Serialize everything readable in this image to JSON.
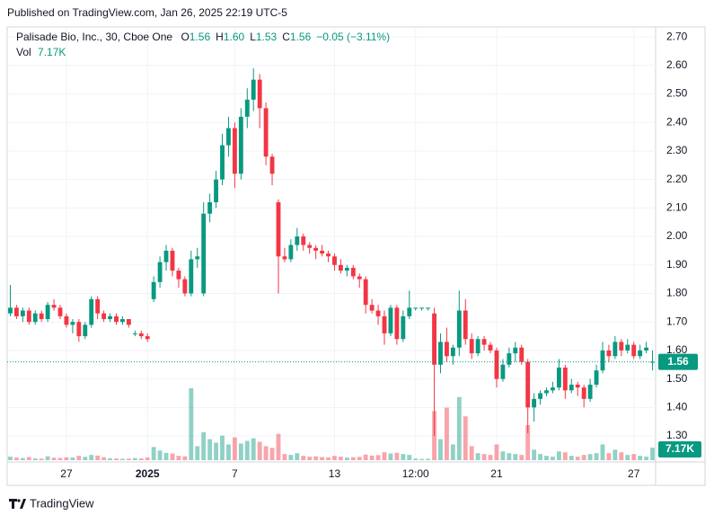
{
  "published": "Published on TradingView.com, Jan 26, 2025 22:19 UTC-5",
  "brand": "TradingView",
  "chart_data": {
    "type": "candlestick",
    "legend": {
      "symbol": "Palisade Bio, Inc., 30, Cboe One",
      "ohlc": [
        {
          "key": "O",
          "value": "1.56"
        },
        {
          "key": "H",
          "value": "1.60"
        },
        {
          "key": "L",
          "value": "1.53"
        },
        {
          "key": "C",
          "value": "1.56"
        }
      ],
      "change": "−0.05 (−3.11%)",
      "vol_key": "Vol",
      "vol_value": "7.17K"
    },
    "up_color": "#089981",
    "down_color": "#f23645",
    "grid": true,
    "ylim": [
      1.215,
      2.735
    ],
    "yticks": [
      {
        "value": 1.3,
        "label": "1.30"
      },
      {
        "value": 1.4,
        "label": "1.40"
      },
      {
        "value": 1.5,
        "label": "1.50"
      },
      {
        "value": 1.6,
        "label": "1.60"
      },
      {
        "value": 1.7,
        "label": "1.70"
      },
      {
        "value": 1.8,
        "label": "1.80"
      },
      {
        "value": 1.9,
        "label": "1.90"
      },
      {
        "value": 2.0,
        "label": "2.00"
      },
      {
        "value": 2.1,
        "label": "2.10"
      },
      {
        "value": 2.2,
        "label": "2.20"
      },
      {
        "value": 2.3,
        "label": "2.30"
      },
      {
        "value": 2.4,
        "label": "2.40"
      },
      {
        "value": 2.5,
        "label": "2.50"
      },
      {
        "value": 2.6,
        "label": "2.60"
      },
      {
        "value": 2.7,
        "label": "2.70"
      }
    ],
    "last_price": 1.56,
    "categories": [
      null,
      null,
      null,
      null,
      null,
      null,
      null,
      null,
      null,
      "27",
      null,
      null,
      null,
      null,
      null,
      null,
      null,
      null,
      null,
      null,
      null,
      null,
      "2025",
      null,
      null,
      null,
      null,
      null,
      null,
      null,
      null,
      null,
      null,
      null,
      null,
      null,
      "7",
      null,
      null,
      null,
      null,
      null,
      null,
      null,
      null,
      null,
      null,
      null,
      null,
      null,
      null,
      null,
      "13",
      null,
      null,
      null,
      null,
      null,
      null,
      null,
      null,
      null,
      null,
      null,
      null,
      "12:00",
      null,
      null,
      null,
      null,
      null,
      null,
      null,
      null,
      null,
      null,
      null,
      null,
      "21",
      null,
      null,
      null,
      null,
      null,
      null,
      null,
      null,
      null,
      null,
      null,
      null,
      null,
      null,
      null,
      null,
      null,
      null,
      null,
      null,
      null,
      "27",
      null,
      null,
      null
    ],
    "open": [
      1.73,
      1.75,
      1.72,
      1.74,
      1.7,
      1.73,
      1.71,
      1.76,
      1.75,
      1.72,
      1.69,
      1.7,
      1.65,
      1.69,
      1.78,
      1.73,
      1.71,
      1.72,
      1.7,
      1.71,
      1.66,
      1.66,
      1.65,
      1.78,
      1.84,
      1.91,
      1.95,
      1.88,
      1.85,
      1.8,
      1.92,
      1.8,
      2.08,
      2.12,
      2.2,
      2.32,
      2.38,
      2.22,
      2.42,
      2.48,
      2.55,
      2.45,
      2.28,
      2.12,
      1.93,
      1.92,
      1.97,
      2.0,
      1.97,
      1.96,
      1.95,
      1.94,
      1.93,
      1.9,
      1.88,
      1.89,
      1.86,
      1.85,
      1.76,
      1.74,
      1.72,
      1.66,
      1.75,
      1.64,
      1.72,
      1.75,
      1.75,
      1.75,
      1.73,
      1.55,
      1.63,
      1.58,
      1.61,
      1.74,
      1.64,
      1.59,
      1.64,
      1.62,
      1.6,
      1.5,
      1.55,
      1.59,
      1.61,
      1.56,
      1.4,
      1.43,
      1.45,
      1.46,
      1.47,
      1.54,
      1.46,
      1.48,
      1.47,
      1.43,
      1.48,
      1.53,
      1.6,
      1.58,
      1.63,
      1.6,
      1.62,
      1.58,
      1.6,
      1.56
    ],
    "high": [
      1.83,
      1.76,
      1.75,
      1.75,
      1.74,
      1.74,
      1.77,
      1.78,
      1.76,
      1.73,
      1.71,
      1.71,
      1.7,
      1.79,
      1.79,
      1.74,
      1.73,
      1.73,
      1.72,
      1.71,
      1.67,
      1.67,
      1.66,
      1.86,
      1.93,
      1.97,
      1.96,
      1.89,
      1.86,
      1.95,
      1.96,
      2.12,
      2.15,
      2.23,
      2.36,
      2.42,
      2.4,
      2.45,
      2.52,
      2.59,
      2.57,
      2.47,
      2.29,
      2.13,
      1.96,
      1.99,
      2.03,
      2.01,
      1.98,
      1.97,
      1.97,
      1.95,
      1.94,
      1.92,
      1.9,
      1.9,
      1.87,
      1.86,
      1.78,
      1.76,
      1.74,
      1.76,
      1.76,
      1.74,
      1.81,
      1.75,
      1.75,
      1.75,
      1.75,
      1.66,
      1.68,
      1.62,
      1.81,
      1.78,
      1.66,
      1.65,
      1.65,
      1.63,
      1.61,
      1.57,
      1.61,
      1.63,
      1.62,
      1.57,
      1.45,
      1.46,
      1.47,
      1.49,
      1.57,
      1.55,
      1.5,
      1.49,
      1.48,
      1.5,
      1.55,
      1.63,
      1.62,
      1.65,
      1.64,
      1.64,
      1.63,
      1.62,
      1.63,
      1.6
    ],
    "low": [
      1.72,
      1.71,
      1.7,
      1.69,
      1.69,
      1.7,
      1.7,
      1.74,
      1.71,
      1.68,
      1.66,
      1.63,
      1.64,
      1.68,
      1.71,
      1.7,
      1.7,
      1.69,
      1.69,
      1.68,
      1.65,
      1.64,
      1.63,
      1.77,
      1.82,
      1.88,
      1.86,
      1.82,
      1.79,
      1.79,
      1.89,
      1.79,
      2.05,
      2.1,
      2.18,
      2.28,
      2.17,
      2.2,
      2.38,
      2.44,
      2.38,
      2.25,
      2.18,
      1.8,
      1.91,
      1.91,
      1.95,
      1.95,
      1.94,
      1.92,
      1.93,
      1.91,
      1.88,
      1.87,
      1.86,
      1.85,
      1.82,
      1.73,
      1.73,
      1.69,
      1.62,
      1.65,
      1.62,
      1.63,
      1.71,
      1.74,
      1.74,
      1.74,
      1.3,
      1.52,
      1.56,
      1.55,
      1.58,
      1.62,
      1.57,
      1.58,
      1.6,
      1.59,
      1.47,
      1.49,
      1.54,
      1.56,
      1.55,
      1.31,
      1.35,
      1.41,
      1.44,
      1.45,
      1.46,
      1.43,
      1.45,
      1.44,
      1.4,
      1.42,
      1.47,
      1.52,
      1.56,
      1.57,
      1.58,
      1.59,
      1.57,
      1.57,
      1.59,
      1.53
    ],
    "close": [
      1.75,
      1.72,
      1.74,
      1.7,
      1.73,
      1.71,
      1.76,
      1.75,
      1.72,
      1.69,
      1.7,
      1.65,
      1.69,
      1.78,
      1.73,
      1.71,
      1.72,
      1.7,
      1.71,
      1.69,
      1.66,
      1.65,
      1.64,
      1.84,
      1.91,
      1.95,
      1.88,
      1.85,
      1.8,
      1.92,
      1.93,
      2.08,
      2.12,
      2.2,
      2.32,
      2.38,
      2.22,
      2.42,
      2.48,
      2.55,
      2.45,
      2.28,
      2.22,
      1.93,
      1.92,
      1.97,
      2.0,
      1.97,
      1.96,
      1.95,
      1.94,
      1.93,
      1.9,
      1.88,
      1.89,
      1.86,
      1.85,
      1.76,
      1.74,
      1.72,
      1.66,
      1.75,
      1.64,
      1.72,
      1.75,
      1.75,
      1.75,
      1.75,
      1.55,
      1.63,
      1.58,
      1.61,
      1.74,
      1.64,
      1.59,
      1.64,
      1.62,
      1.6,
      1.5,
      1.55,
      1.59,
      1.61,
      1.56,
      1.4,
      1.43,
      1.45,
      1.46,
      1.47,
      1.54,
      1.46,
      1.48,
      1.47,
      1.43,
      1.48,
      1.53,
      1.6,
      1.58,
      1.63,
      1.6,
      1.62,
      1.58,
      1.6,
      1.61,
      1.56
    ],
    "volume": [
      2000,
      1500,
      1200,
      1800,
      1000,
      900,
      2200,
      1400,
      1300,
      1600,
      1500,
      2500,
      1900,
      3000,
      2600,
      1700,
      1100,
      1000,
      800,
      900,
      1200,
      1000,
      1500,
      7500,
      5500,
      4200,
      3800,
      2500,
      2200,
      41000,
      8000,
      16000,
      12000,
      10000,
      14000,
      9000,
      13000,
      9500,
      11000,
      12500,
      10500,
      8000,
      7000,
      15000,
      3500,
      3000,
      4000,
      2500,
      2000,
      2200,
      1800,
      1600,
      2400,
      2000,
      1500,
      1700,
      1900,
      3200,
      2600,
      2900,
      4500,
      3800,
      4200,
      3500,
      3000,
      900,
      700,
      800,
      28000,
      12000,
      30000,
      9000,
      36000,
      25000,
      8000,
      4000,
      3500,
      3000,
      9000,
      5000,
      4000,
      3500,
      3000,
      20000,
      6000,
      3500,
      2500,
      2000,
      5000,
      4500,
      2500,
      2000,
      3000,
      3500,
      4000,
      9000,
      4000,
      6000,
      4500,
      3000,
      3500,
      2500,
      2000,
      7170
    ]
  }
}
